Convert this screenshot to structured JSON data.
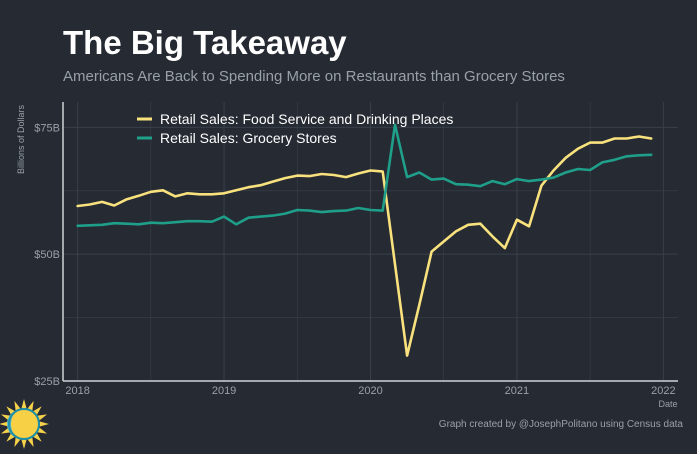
{
  "header": {
    "title": "The Big Takeaway",
    "subtitle": "Americans Are Back to Spending More on Restaurants than Grocery Stores"
  },
  "caption": "Graph created by @JosephPolitano using Census data",
  "logo_icon": "sun-logo-icon",
  "colors": {
    "background": "#252a33",
    "food_service": "#f9e27d",
    "grocery": "#1f9e89",
    "grid": "#3a404a",
    "axis": "#cfd3d8",
    "text": "#9aa0a8"
  },
  "chart_data": {
    "type": "line",
    "xlabel": "Date",
    "ylabel": "Billions of Dollars",
    "xlim": [
      2017.9,
      2022.1
    ],
    "ylim": [
      25,
      80
    ],
    "x_ticks": [
      2018,
      2019,
      2020,
      2021,
      2022
    ],
    "x_tick_labels": [
      "2018",
      "2019",
      "2020",
      "2021",
      "2022"
    ],
    "y_ticks": [
      25,
      50,
      75
    ],
    "y_tick_labels": [
      "$25B",
      "$50B",
      "$75B"
    ],
    "grid": true,
    "legend_position": "top-left",
    "series": [
      {
        "name": "Retail Sales: Food Service and Drinking Places",
        "color": "#f9e27d",
        "x": [
          2018.0,
          2018.083,
          2018.167,
          2018.25,
          2018.333,
          2018.417,
          2018.5,
          2018.583,
          2018.667,
          2018.75,
          2018.833,
          2018.917,
          2019.0,
          2019.083,
          2019.167,
          2019.25,
          2019.333,
          2019.417,
          2019.5,
          2019.583,
          2019.667,
          2019.75,
          2019.833,
          2019.917,
          2020.0,
          2020.083,
          2020.167,
          2020.25,
          2020.333,
          2020.417,
          2020.5,
          2020.583,
          2020.667,
          2020.75,
          2020.833,
          2020.917,
          2021.0,
          2021.083,
          2021.167,
          2021.25,
          2021.333,
          2021.417,
          2021.5,
          2021.583,
          2021.667,
          2021.75,
          2021.833,
          2021.917
        ],
        "values": [
          59.5,
          59.8,
          60.3,
          59.6,
          60.8,
          61.5,
          62.3,
          62.6,
          61.4,
          62.0,
          61.8,
          61.8,
          62.0,
          62.6,
          63.2,
          63.6,
          64.3,
          65.0,
          65.5,
          65.4,
          65.8,
          65.6,
          65.2,
          65.9,
          66.5,
          66.3,
          48.0,
          30.0,
          40.0,
          50.5,
          52.5,
          54.5,
          55.8,
          56.0,
          53.5,
          51.2,
          56.8,
          55.5,
          63.5,
          66.5,
          69.0,
          70.8,
          72.0,
          72.0,
          72.8,
          72.8,
          73.2,
          72.8
        ]
      },
      {
        "name": "Retail Sales: Grocery Stores",
        "color": "#1f9e89",
        "x": [
          2018.0,
          2018.083,
          2018.167,
          2018.25,
          2018.333,
          2018.417,
          2018.5,
          2018.583,
          2018.667,
          2018.75,
          2018.833,
          2018.917,
          2019.0,
          2019.083,
          2019.167,
          2019.25,
          2019.333,
          2019.417,
          2019.5,
          2019.583,
          2019.667,
          2019.75,
          2019.833,
          2019.917,
          2020.0,
          2020.083,
          2020.167,
          2020.25,
          2020.333,
          2020.417,
          2020.5,
          2020.583,
          2020.667,
          2020.75,
          2020.833,
          2020.917,
          2021.0,
          2021.083,
          2021.167,
          2021.25,
          2021.333,
          2021.417,
          2021.5,
          2021.583,
          2021.667,
          2021.75,
          2021.833,
          2021.917
        ],
        "values": [
          55.6,
          55.7,
          55.8,
          56.1,
          56.0,
          55.9,
          56.2,
          56.1,
          56.3,
          56.5,
          56.5,
          56.4,
          57.4,
          55.9,
          57.2,
          57.4,
          57.6,
          58.0,
          58.7,
          58.6,
          58.3,
          58.5,
          58.6,
          59.1,
          58.7,
          58.6,
          75.5,
          65.2,
          66.1,
          64.7,
          64.9,
          63.8,
          63.7,
          63.4,
          64.4,
          63.8,
          64.8,
          64.4,
          64.7,
          65.1,
          66.1,
          66.8,
          66.6,
          68.1,
          68.6,
          69.3,
          69.5,
          69.6
        ]
      }
    ]
  }
}
